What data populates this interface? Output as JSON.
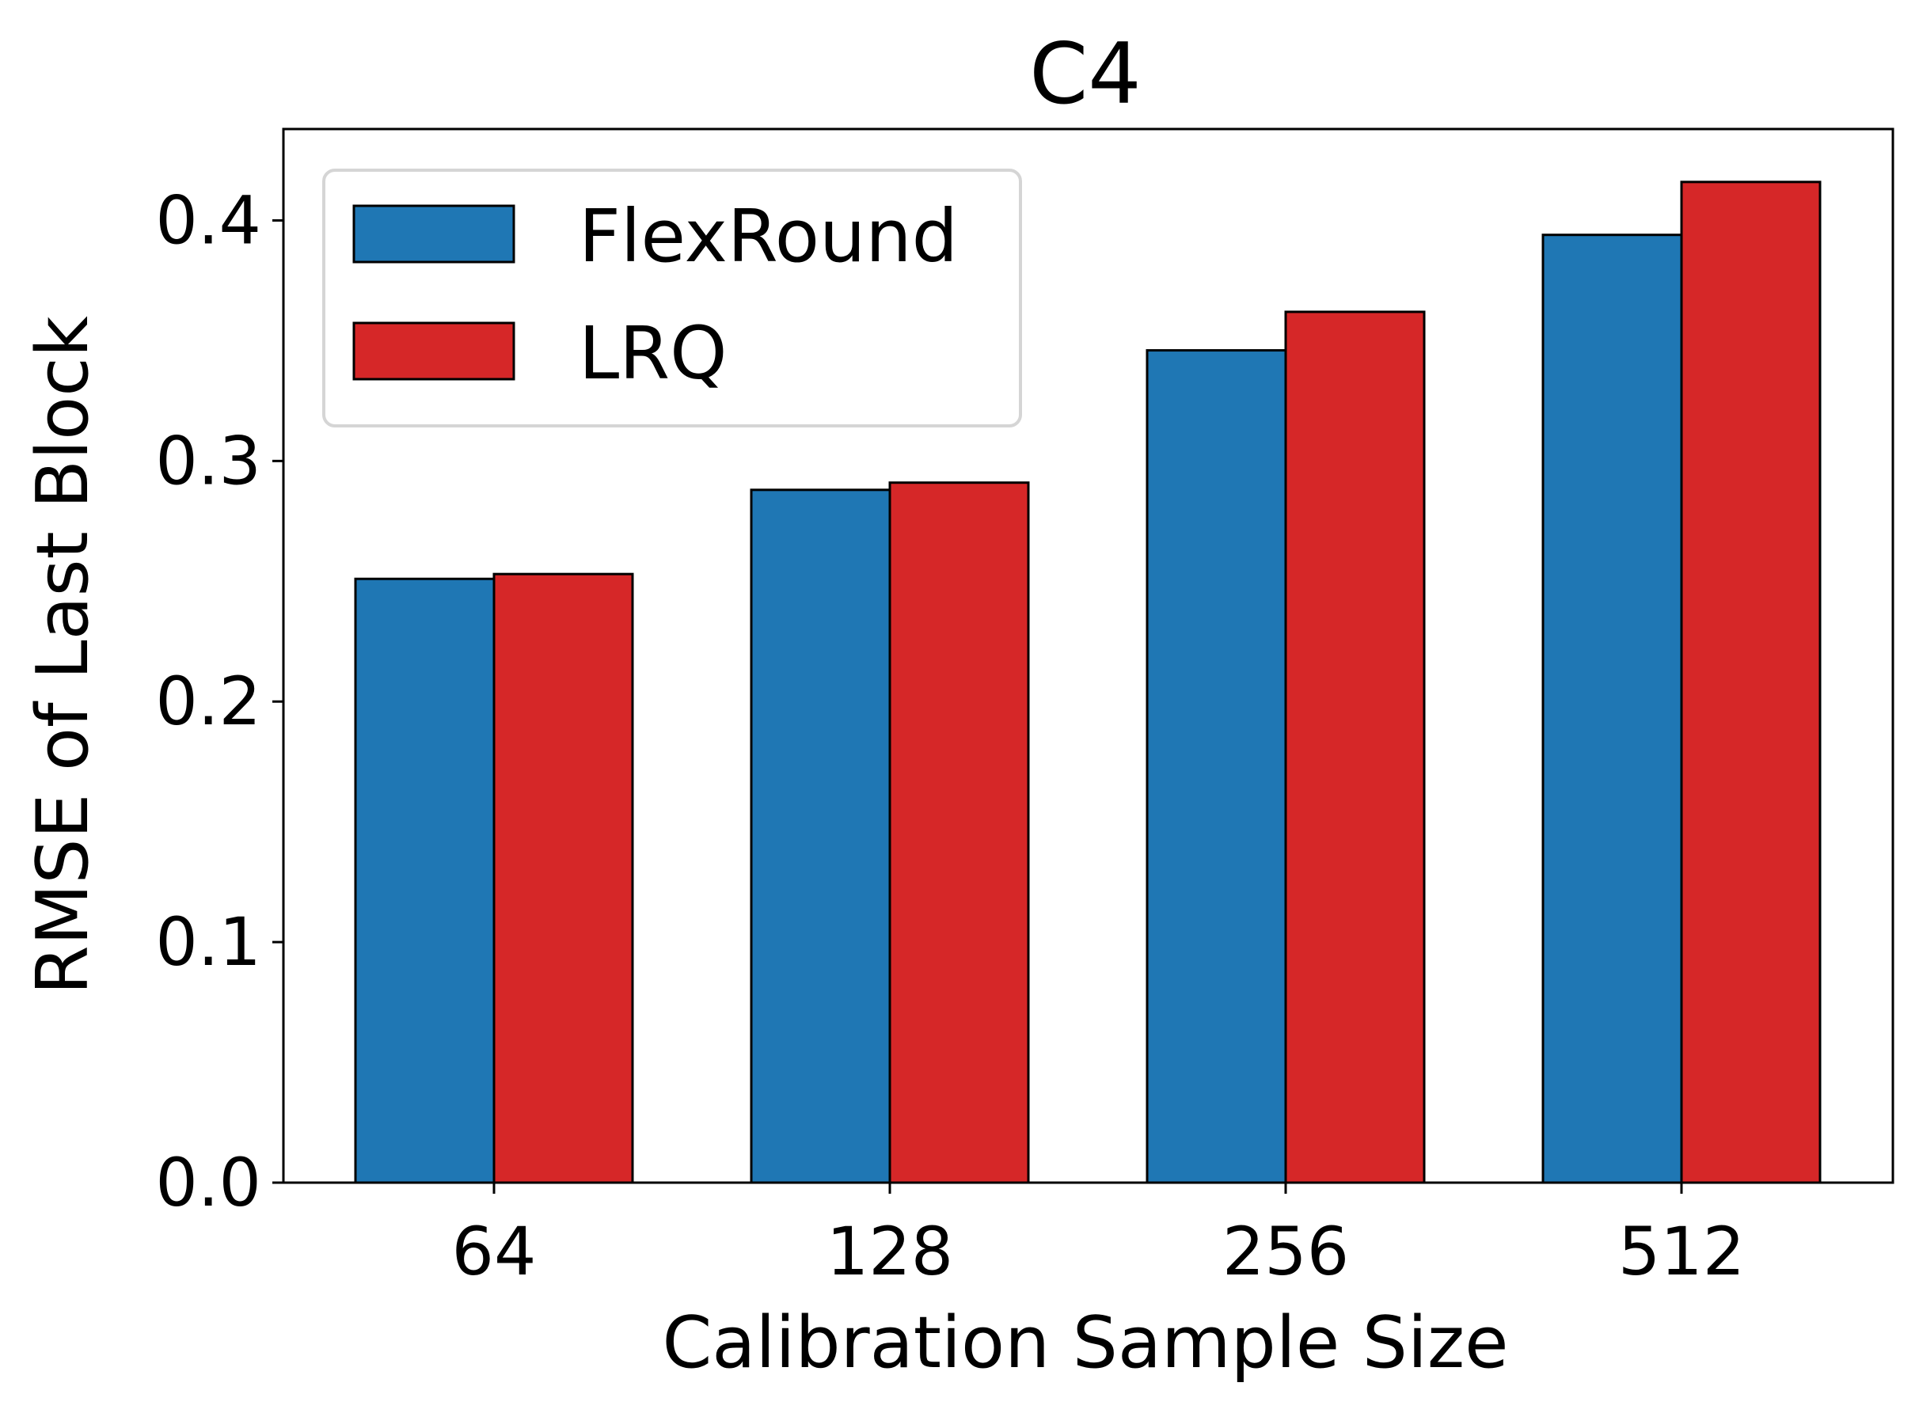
{
  "chart_data": {
    "type": "bar",
    "title": "C4",
    "xlabel": "Calibration Sample Size",
    "ylabel": "RMSE of Last Block",
    "categories": [
      "64",
      "128",
      "256",
      "512"
    ],
    "series": [
      {
        "name": "FlexRound",
        "values": [
          0.251,
          0.288,
          0.346,
          0.394
        ],
        "color": "#1f77b4"
      },
      {
        "name": "LRQ",
        "values": [
          0.253,
          0.291,
          0.362,
          0.416
        ],
        "color": "#d62728"
      }
    ],
    "ylim": [
      0,
      0.438
    ],
    "yticks": [
      "0.0",
      "0.1",
      "0.2",
      "0.3",
      "0.4"
    ],
    "grid": false,
    "legend_position": "top-left"
  }
}
